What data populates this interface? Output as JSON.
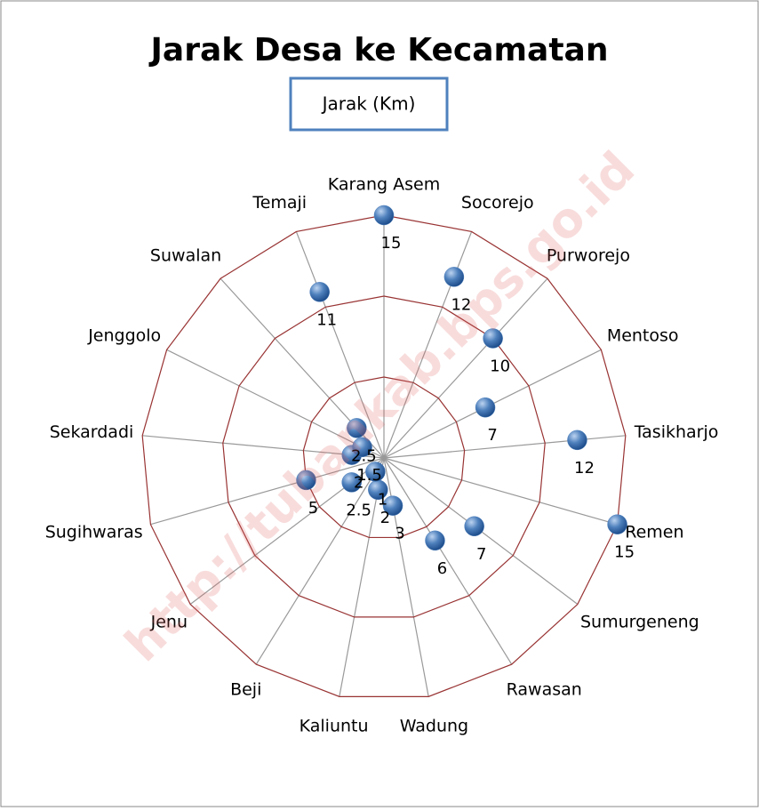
{
  "chart_data": {
    "type": "radar",
    "title": "Jarak Desa ke Kecamatan",
    "watermark": "http://tubankab.bps.go.id",
    "categories": [
      "Karang Asem",
      "Socorejo",
      "Purworejo",
      "Mentoso",
      "Tasikharjo",
      "Remen",
      "Sumurgeneng",
      "Rawasan",
      "Wadung",
      "Kaliuntu",
      "Beji",
      "Jenu",
      "Sugihwaras",
      "Sekardadi",
      "Jenggolo",
      "Suwalan",
      "Temaji"
    ],
    "series": [
      {
        "name": "Jarak (Km)",
        "color": "#4f81bd",
        "values": [
          15,
          12,
          10,
          7,
          12,
          15,
          7,
          6,
          3,
          2,
          1,
          2.5,
          5,
          2,
          1.5,
          2.5,
          11
        ]
      }
    ],
    "ylim": [
      0,
      15
    ],
    "yticks": [
      0,
      5,
      10,
      15
    ],
    "grid": true,
    "grid_color": "#993333",
    "spoke_color": "#999999",
    "legend": "top"
  }
}
